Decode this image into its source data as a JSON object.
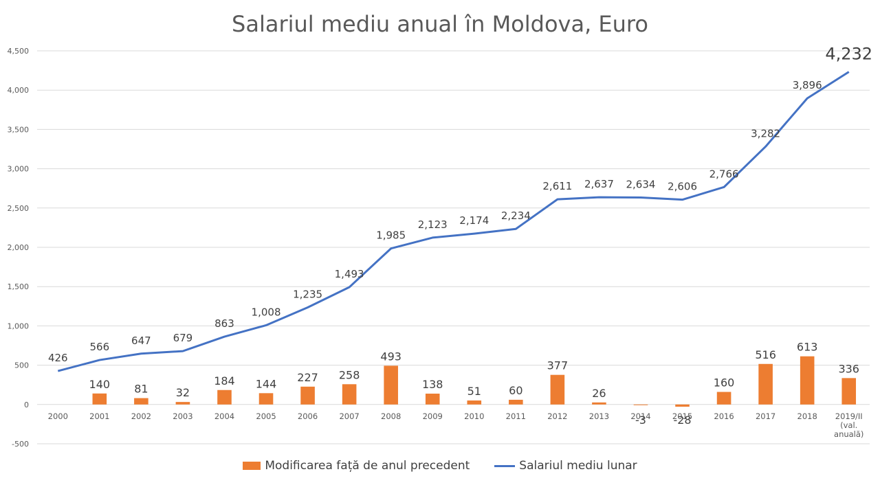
{
  "chart_data": {
    "type": "bar+line",
    "title": "Salariul mediu anual în Moldova, Euro",
    "categories": [
      "2000",
      "2001",
      "2002",
      "2003",
      "2004",
      "2005",
      "2006",
      "2007",
      "2008",
      "2009",
      "2010",
      "2011",
      "2012",
      "2013",
      "2014",
      "2015",
      "2016",
      "2017",
      "2018",
      "2019/II\n(val.\nanuală)"
    ],
    "series": [
      {
        "name": "Modificarea față de anul precedent",
        "type": "bar",
        "color": "#ED7D31",
        "values": [
          null,
          140,
          81,
          32,
          184,
          144,
          227,
          258,
          493,
          138,
          51,
          60,
          377,
          26,
          -3,
          -28,
          160,
          516,
          613,
          336
        ],
        "labels": [
          "",
          "140",
          "81",
          "32",
          "184",
          "144",
          "227",
          "258",
          "493",
          "138",
          "51",
          "60",
          "377",
          "26",
          "-3",
          "-28",
          "160",
          "516",
          "613",
          "336"
        ]
      },
      {
        "name": "Salariul mediu lunar",
        "type": "line",
        "color": "#4472C4",
        "values": [
          426,
          566,
          647,
          679,
          863,
          1008,
          1235,
          1493,
          1985,
          2123,
          2174,
          2234,
          2611,
          2637,
          2634,
          2606,
          2766,
          3282,
          3896,
          4232
        ],
        "labels": [
          "426",
          "566",
          "647",
          "679",
          "863",
          "1,008",
          "1,235",
          "1,493",
          "1,985",
          "2,123",
          "2,174",
          "2,234",
          "2,611",
          "2,637",
          "2,634",
          "2,606",
          "2,766",
          "3,282",
          "3,896",
          "4,232"
        ]
      }
    ],
    "ylim": [
      -500,
      4500
    ],
    "yticks": [
      -500,
      0,
      500,
      1000,
      1500,
      2000,
      2500,
      3000,
      3500,
      4000,
      4500
    ],
    "ytick_labels": [
      "-500",
      "0",
      "500",
      "1,000",
      "1,500",
      "2,000",
      "2,500",
      "3,000",
      "3,500",
      "4,000",
      "4,500"
    ],
    "grid": true,
    "legend_position": "bottom"
  }
}
